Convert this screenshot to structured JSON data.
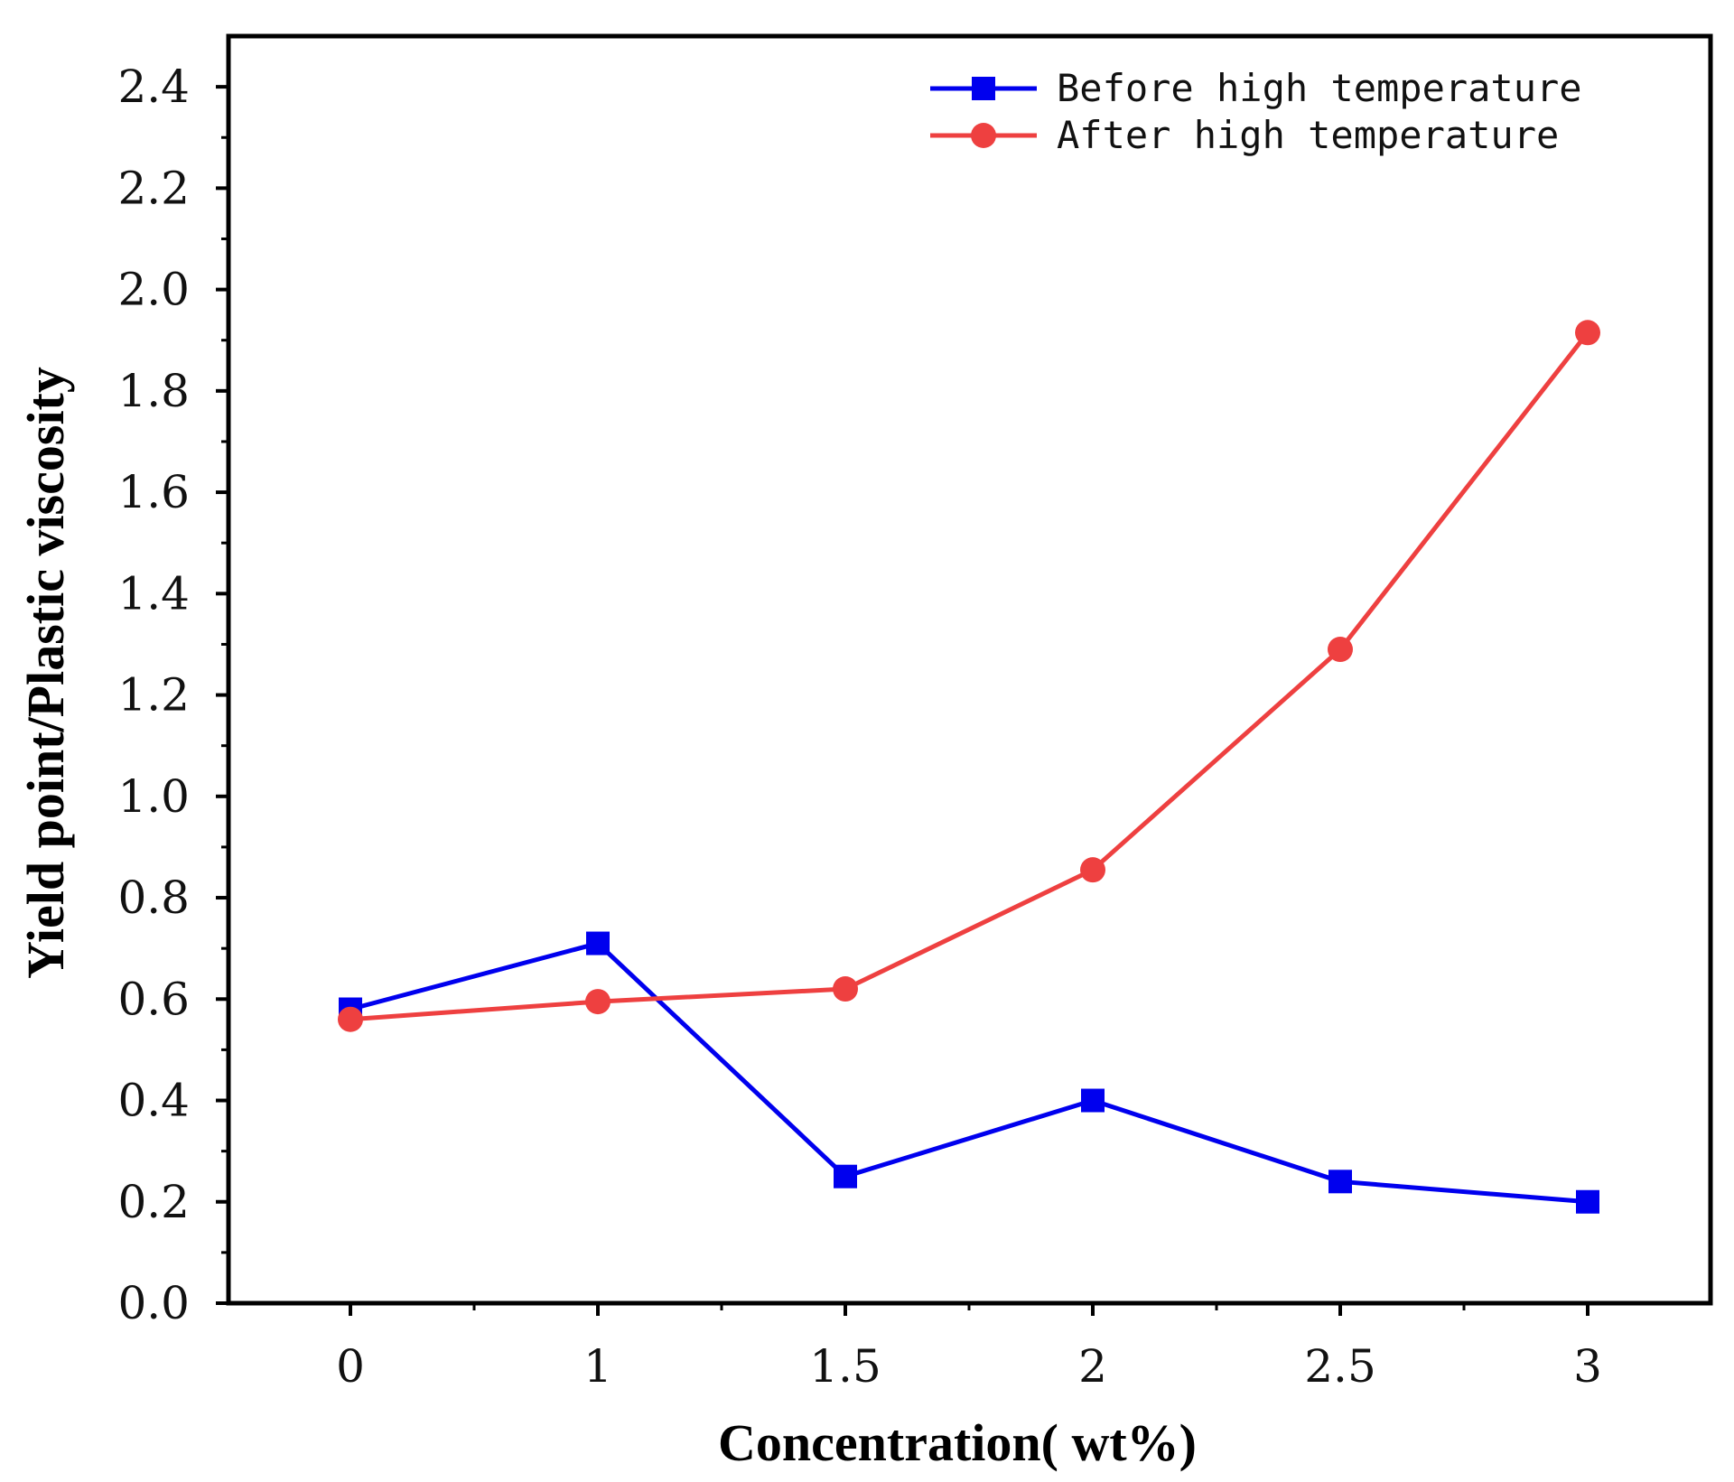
{
  "chart_data": {
    "type": "line",
    "xlabel": "Concentration( wt%)",
    "ylabel": "Yield point/Plastic viscosity",
    "x_categories": [
      "0",
      "1",
      "1.5",
      "2",
      "2.5",
      "3"
    ],
    "y_ticks": [
      "0.0",
      "0.2",
      "0.4",
      "0.6",
      "0.8",
      "1.0",
      "1.2",
      "1.4",
      "1.6",
      "1.8",
      "2.0",
      "2.2",
      "2.4"
    ],
    "ylim": [
      0,
      2.5
    ],
    "grid": false,
    "legend_position": "top-right",
    "series": [
      {
        "name": "Before high temperature",
        "color": "#0000ee",
        "marker": "square",
        "values": [
          0.58,
          0.71,
          0.25,
          0.4,
          0.24,
          0.2
        ]
      },
      {
        "name": "After high temperature",
        "color": "#ee4040",
        "marker": "circle",
        "values": [
          0.56,
          0.595,
          0.62,
          0.855,
          1.29,
          1.915
        ]
      }
    ]
  }
}
